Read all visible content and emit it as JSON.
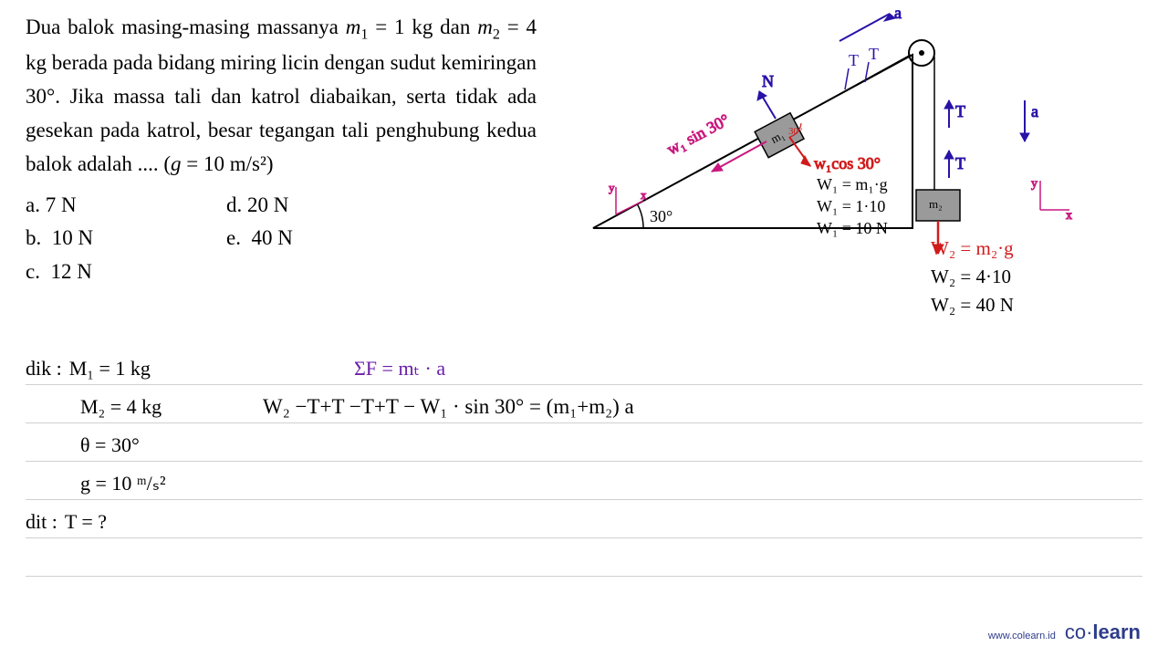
{
  "problem": {
    "text_html": "Dua balok masing-masing massanya <i>m</i><sub>1</sub> = 1 kg dan <i>m</i><sub>2</sub> = 4 kg berada pada bidang miring licin dengan sudut kemiringan 30°. Jika massa tali dan katrol diabaikan, serta tidak ada gesekan pada katrol, besar tegangan tali penghubung kedua balok adalah .... (<i>g</i> = 10 m/s²)",
    "options": {
      "a": "7 N",
      "b": "10 N",
      "c": "12 N",
      "d": "20 N",
      "e": "40 N"
    }
  },
  "diagram": {
    "angle_label": "30°",
    "blue_labels": {
      "a_top": "a",
      "T1": "T",
      "T2": "T",
      "N": "N",
      "a_right": "a",
      "T_right1": "T",
      "T_right2": "T"
    },
    "magenta_labels": {
      "w1sin": "w₁ sin 30°",
      "axes": {
        "x": "x",
        "y": "y"
      }
    },
    "red_labels": {
      "w1cos": "w₁cos 30°",
      "w2": "W₂ = m₂·g"
    },
    "black_calc": {
      "w1_formula": "W₁ = m₁·g",
      "w1_sub": "W₁ = 1·10",
      "w1_res": "W₁ = 10 N"
    },
    "right_side_calc": {
      "w2_formula": "W₂ = m₂·g",
      "w2_sub": "W₂ = 4·10",
      "w2_res": "W₂ = 40 N"
    },
    "colors": {
      "blue": "#2813a8",
      "red": "#d11a1a",
      "magenta": "#c9177e",
      "black": "#000000",
      "triangle": "#000000",
      "block_fill": "#9a9a9a"
    }
  },
  "work": {
    "dik_label": "dik :",
    "dit_label": "dit :",
    "lines": {
      "m1": "M₁ = 1  kg",
      "m2": "M₂ = 4  kg",
      "theta": "θ  = 30°",
      "g": "g  = 10 ᵐ/ₛ²",
      "dit": "T = ?"
    },
    "equations": {
      "sigmaF": "ΣF  = mₜ · a",
      "expanded": "W₂ −T+T −T+T  − W₁ · sin 30°  = (m₁+m₂) a"
    }
  },
  "footer": {
    "url": "www.colearn.id",
    "brand_pre": "co·",
    "brand_bold": "learn"
  }
}
